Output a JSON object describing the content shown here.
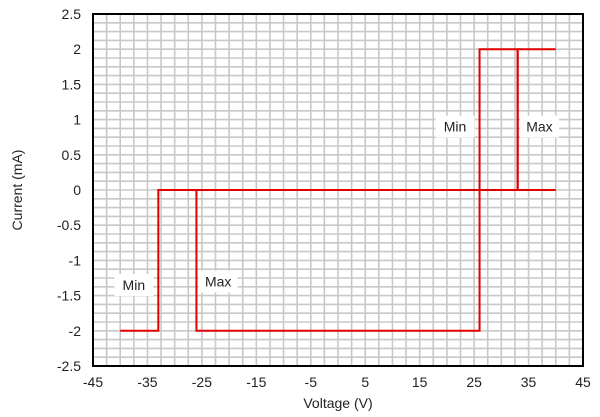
{
  "chart_data": {
    "type": "line",
    "title": "",
    "xlabel": "Voltage (V)",
    "ylabel": "Current (mA)",
    "xlim": [
      -45,
      45
    ],
    "ylim": [
      -2.5,
      2.5
    ],
    "x_ticks": [
      -45,
      -35,
      -25,
      -15,
      -5,
      5,
      15,
      25,
      35,
      45
    ],
    "x_tick_labels": [
      "-45",
      "-35",
      "-25",
      "-15",
      "-5",
      "5",
      "15",
      "25",
      "35",
      "45"
    ],
    "y_ticks": [
      2.5,
      2,
      1.5,
      1,
      0.5,
      0,
      -0.5,
      -1,
      -1.5,
      -2,
      -2.5
    ],
    "y_tick_labels": [
      "2.5",
      "2",
      "1.5",
      "1",
      "0.5",
      "0",
      "-0.5",
      "-1",
      "-1.5",
      "-2",
      "-2.5"
    ],
    "grid": true,
    "line_color": "#e00000",
    "grid_color": "#c8c8c8",
    "series": [
      {
        "name": "",
        "x": [
          -40,
          -33,
          -33,
          -26,
          -26,
          26,
          26,
          33,
          33,
          40
        ],
        "y": [
          -2,
          -2,
          0,
          0,
          -2,
          -2,
          0,
          0,
          2,
          2
        ]
      },
      {
        "name": "",
        "x": [
          -33,
          26,
          26,
          33,
          33,
          40
        ],
        "y": [
          0,
          0,
          2,
          2,
          0,
          0
        ]
      }
    ],
    "annotations": [
      {
        "text": "Min",
        "x": -37.5,
        "y": -1.35
      },
      {
        "text": "Max",
        "x": -22,
        "y": -1.3
      },
      {
        "text": "Min",
        "x": 21.5,
        "y": 0.9
      },
      {
        "text": "Max",
        "x": 37,
        "y": 0.9
      }
    ]
  }
}
